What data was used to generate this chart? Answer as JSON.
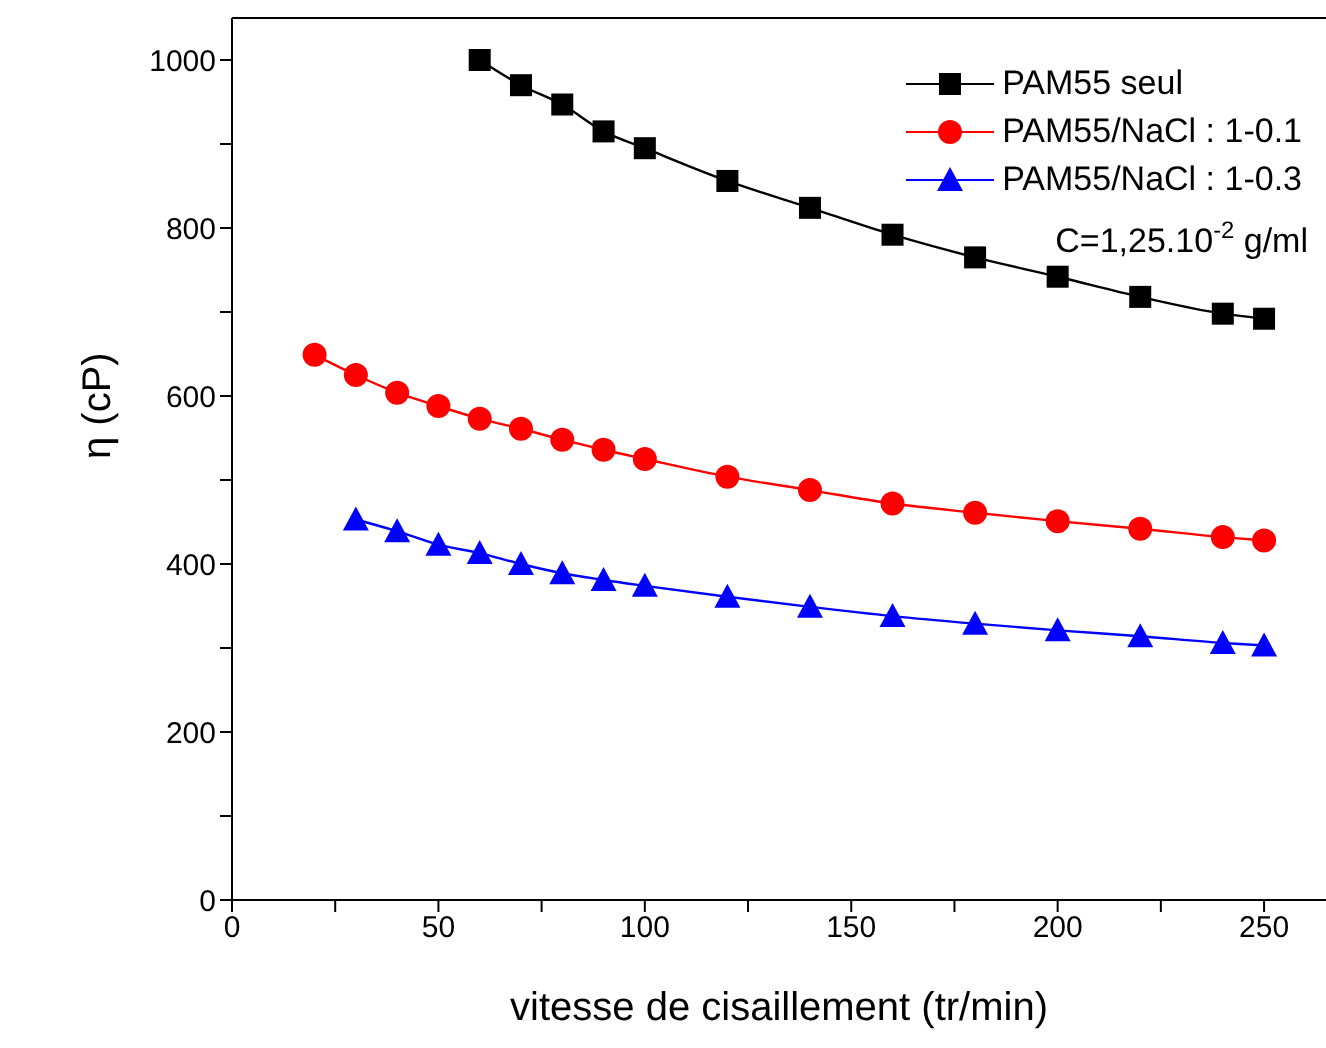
{
  "chart_data": {
    "type": "line",
    "xlabel": "vitesse de cisaillement (tr/min)",
    "ylabel": "η (cP)",
    "xlim": [
      0,
      265
    ],
    "xticks": [
      0,
      {
        "value": 25,
        "label": null
      },
      50,
      {
        "value": 75,
        "label": null
      },
      100,
      {
        "value": 125,
        "label": null
      },
      150,
      {
        "value": 175,
        "label": null
      },
      200,
      {
        "value": 225,
        "label": null
      },
      250
    ],
    "ylim": [
      0,
      1050
    ],
    "yticks": [
      0,
      {
        "value": 100,
        "label": null
      },
      200,
      {
        "value": 300,
        "label": null
      },
      400,
      {
        "value": 500,
        "label": null
      },
      600,
      {
        "value": 700,
        "label": null
      },
      800,
      {
        "value": 900,
        "label": null
      },
      1000
    ],
    "grid": false,
    "legend": "top right",
    "line_style": "solid",
    "annotations": [
      "C=1,25.10$^{-2}$ g/ml"
    ],
    "series": [
      {
        "name": "PAM55 seul",
        "color": "#000000",
        "marker": "square",
        "x": [
          60,
          70,
          80,
          90,
          100,
          120,
          140,
          160,
          180,
          200,
          220,
          240,
          250
        ],
        "values": [
          1000,
          970,
          947,
          915,
          895,
          856,
          824,
          792,
          765,
          742,
          718,
          698,
          692
        ]
      },
      {
        "name": "PAM55/NaCl : 1-0.1",
        "color": "#ff0000",
        "marker": "circle",
        "x": [
          20,
          30,
          40,
          50,
          60,
          70,
          80,
          90,
          100,
          120,
          140,
          160,
          180,
          200,
          220,
          240,
          250
        ],
        "values": [
          649,
          625,
          604,
          588,
          573,
          561,
          548,
          536,
          525,
          504,
          488,
          472,
          461,
          451,
          442,
          432,
          428
        ]
      },
      {
        "name": "PAM55/NaCl : 1-0.3",
        "color": "#0000ff",
        "marker": "triangle",
        "x": [
          30,
          40,
          50,
          60,
          70,
          80,
          90,
          100,
          120,
          140,
          160,
          180,
          200,
          220,
          240,
          250
        ],
        "values": [
          453,
          439,
          423,
          413,
          400,
          389,
          381,
          374,
          361,
          349,
          338,
          329,
          321,
          314,
          306,
          303
        ]
      }
    ]
  }
}
